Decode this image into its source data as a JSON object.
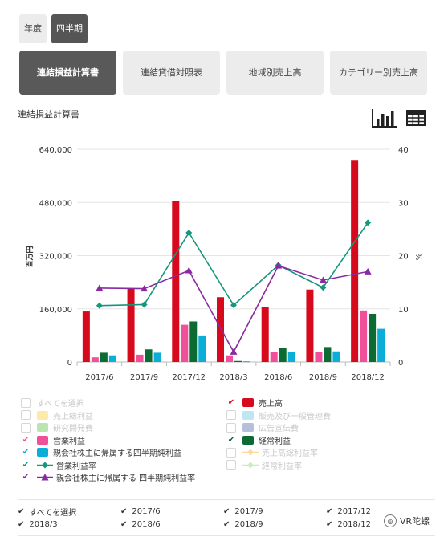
{
  "period_toggle": [
    {
      "label": "年度",
      "active": false
    },
    {
      "label": "四半期",
      "active": true
    }
  ],
  "tabs": [
    {
      "label": "連結損益計算書",
      "active": true
    },
    {
      "label": "連結貸借対照表",
      "active": false
    },
    {
      "label": "地域別売上高",
      "active": false
    },
    {
      "label": "カテゴリー別売上高",
      "active": false
    }
  ],
  "section_title": "連結損益計算書",
  "view_icons": [
    "bar-chart-icon",
    "table-icon"
  ],
  "chart_data": {
    "type": "bar",
    "categories": [
      "2017/6",
      "2017/9",
      "2017/12",
      "2018/3",
      "2018/6",
      "2018/9",
      "2018/12"
    ],
    "y_left": {
      "label": "百万円",
      "ticks": [
        "0",
        "160,000",
        "320,000",
        "480,000",
        "640,000"
      ],
      "lim": [
        0,
        640000
      ]
    },
    "y_right": {
      "label": "%",
      "ticks": [
        "0",
        "10",
        "20",
        "30",
        "40"
      ],
      "lim": [
        0,
        40
      ]
    },
    "bar_series": [
      {
        "name": "売上高",
        "color": "#d7091c",
        "values": [
          152000,
          220000,
          483000,
          195000,
          165000,
          218000,
          608000
        ]
      },
      {
        "name": "営業利益",
        "color": "#f0509a",
        "values": [
          14000,
          22000,
          112000,
          20000,
          30000,
          30000,
          155000
        ]
      },
      {
        "name": "経常利益",
        "color": "#0b6b32",
        "values": [
          28000,
          38000,
          122000,
          3000,
          42000,
          45000,
          145000
        ]
      },
      {
        "name": "親会社株主に帰属する四半期純利益",
        "color": "#0aaed9",
        "values": [
          20000,
          28000,
          80000,
          2000,
          30000,
          32000,
          100000
        ]
      }
    ],
    "line_series": [
      {
        "name": "営業利益率",
        "color": "#16967d",
        "marker": "diamond",
        "values": [
          10.6,
          10.8,
          24.3,
          10.7,
          18.2,
          14.0,
          26.2
        ]
      },
      {
        "name": "親会社株主に帰属する 四半期純利益率",
        "color": "#8a2aa3",
        "marker": "triangle",
        "values": [
          13.9,
          13.8,
          17.2,
          1.9,
          18.1,
          15.4,
          17.0
        ]
      }
    ],
    "grid": true
  },
  "legend": {
    "rows": [
      [
        {
          "label": "すべてを選択",
          "check": "box",
          "swatch": "",
          "enabled": false
        },
        {
          "label": "売上高",
          "check": "✔",
          "check_color": "#d7091c",
          "swatch": "#d7091c",
          "enabled": true
        }
      ],
      [
        {
          "label": "売上総利益",
          "check": "box",
          "swatch": "#fde9a8",
          "enabled": false
        },
        {
          "label": "販売及び一般管理費",
          "check": "box",
          "swatch": "#bfe6f5",
          "enabled": false
        }
      ],
      [
        {
          "label": "研究開発費",
          "check": "box",
          "swatch": "#b9e6b0",
          "enabled": false
        },
        {
          "label": "広告宣伝費",
          "check": "box",
          "swatch": "#b4c0dc",
          "enabled": false
        }
      ],
      [
        {
          "label": "営業利益",
          "check": "✔",
          "check_color": "#f0509a",
          "swatch": "#f0509a",
          "enabled": true
        },
        {
          "label": "経常利益",
          "check": "✔",
          "check_color": "#0b6b32",
          "swatch": "#0b6b32",
          "enabled": true
        }
      ],
      [
        {
          "label": "親会社株主に帰属する四半期純利益",
          "check": "✔",
          "check_color": "#0aaed9",
          "swatch": "#0aaed9",
          "enabled": true
        },
        {
          "label": "売上高総利益率",
          "check": "box",
          "line": "#fcd9a0",
          "marker": "diamond",
          "enabled": false
        }
      ],
      [
        {
          "label": "営業利益率",
          "check": "✔",
          "check_color": "#16967d",
          "line": "#16967d",
          "marker": "diamond",
          "enabled": true
        },
        {
          "label": "経常利益率",
          "check": "box",
          "line": "#c9ecc0",
          "marker": "diamond",
          "enabled": false
        }
      ],
      [
        {
          "label": "親会社株主に帰属する 四半期純利益率",
          "check": "✔",
          "check_color": "#8a2aa3",
          "line": "#8a2aa3",
          "marker": "triangle",
          "enabled": true
        }
      ]
    ]
  },
  "filter": {
    "rows": [
      [
        "すべてを選択",
        "2017/6",
        "2017/9",
        "2017/12"
      ],
      [
        "2018/3",
        "2018/6",
        "2018/9",
        "2018/12"
      ]
    ],
    "check_glyph": "✔"
  },
  "watermark": {
    "text": "VR陀螺",
    "logo": "logo-icon"
  }
}
